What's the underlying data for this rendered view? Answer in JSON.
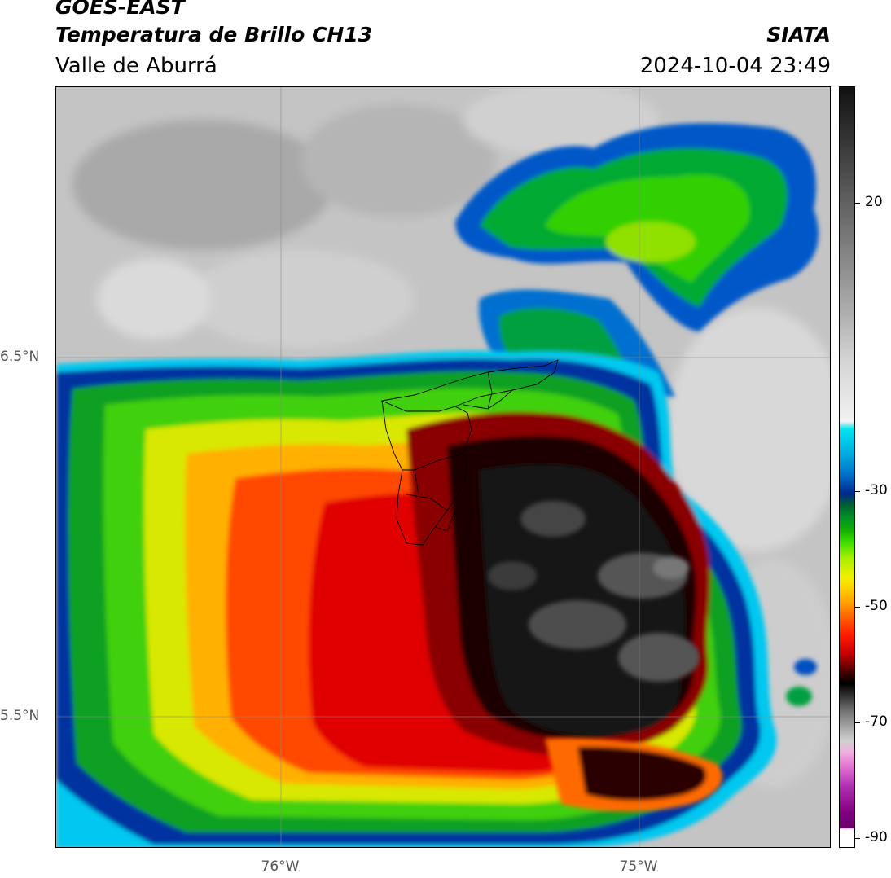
{
  "header": {
    "satellite": "GOES-EAST",
    "product": "Temperatura de Brillo CH13",
    "region": "Valle de Aburrá",
    "organization": "SIATA",
    "timestamp": "2024-10-04 23:49"
  },
  "axes": {
    "lat_ticks": [
      "6.5°N",
      "5.5°N"
    ],
    "lon_ticks": [
      "76°W",
      "75°W"
    ]
  },
  "colorbar": {
    "tick_labels": [
      "20",
      "-30",
      "-50",
      "-70",
      "-90"
    ],
    "colors": {
      "warm_gray_top": "#111111",
      "light_gray": "#f2f2f2",
      "cyan": "#00e5ee",
      "dark_blue": "#00288c",
      "green": "#16b400",
      "yellow": "#f0f000",
      "orange": "#ff9a00",
      "red": "#ff1e00",
      "dark_red": "#7a0000",
      "black": "#000000",
      "magenta": "#e070d0",
      "purple": "#800080"
    }
  },
  "map": {
    "layer_colors": {
      "clear_sky": "#bdbdbd",
      "cloud_edge_cyan": "#00d8f0",
      "cloud_blue": "#0050c0",
      "cold_green": "#28c800",
      "yellow": "#f0e000",
      "orange": "#ff9000",
      "red": "#ff2000",
      "dark_red": "#a00000",
      "core_black": "#151515",
      "core_gray": "#4a4a4a"
    }
  }
}
